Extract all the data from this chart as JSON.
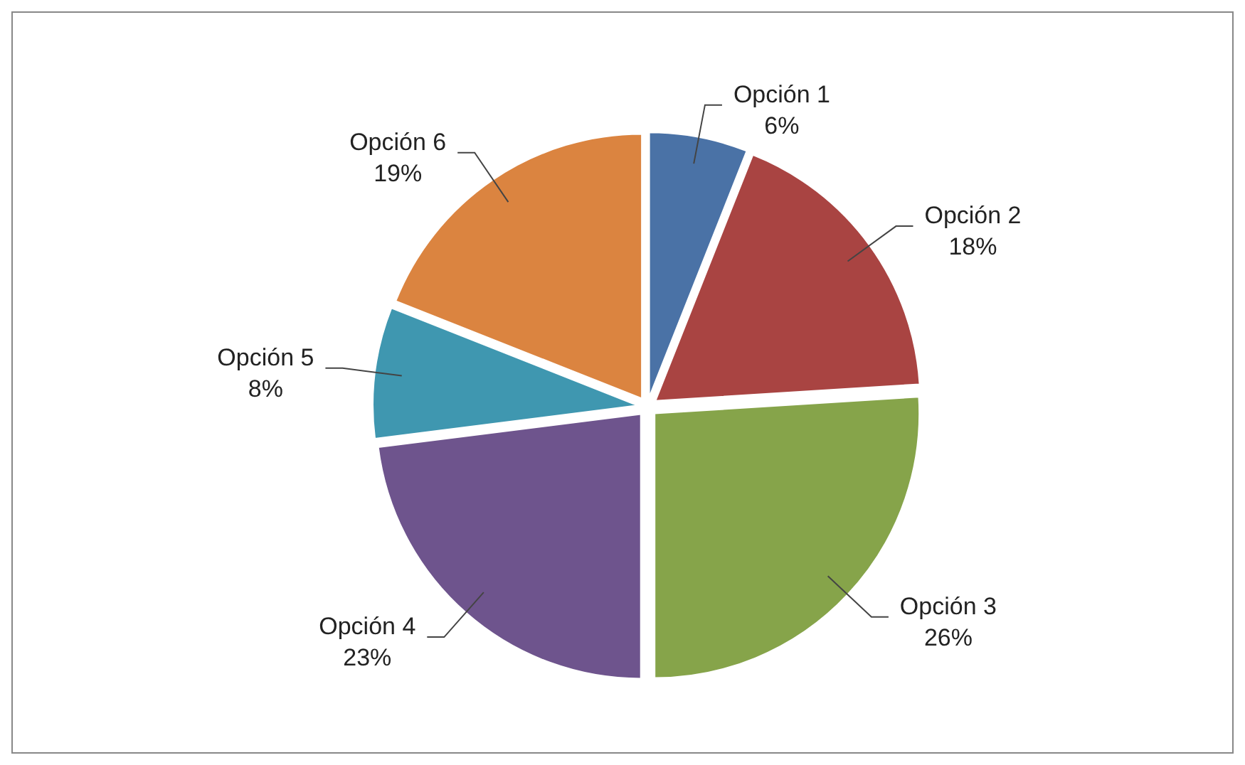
{
  "chart_data": {
    "type": "pie",
    "categories": [
      "Opción 1",
      "Opción 2",
      "Opción 3",
      "Opción 4",
      "Opción 5",
      "Opción 6"
    ],
    "values": [
      6,
      18,
      26,
      23,
      8,
      19
    ],
    "value_labels": [
      "6%",
      "18%",
      "26%",
      "23%",
      "8%",
      "19%"
    ],
    "colors": [
      "#4a72a6",
      "#a94442",
      "#86a44a",
      "#6e548d",
      "#3f97b0",
      "#db8440"
    ]
  }
}
